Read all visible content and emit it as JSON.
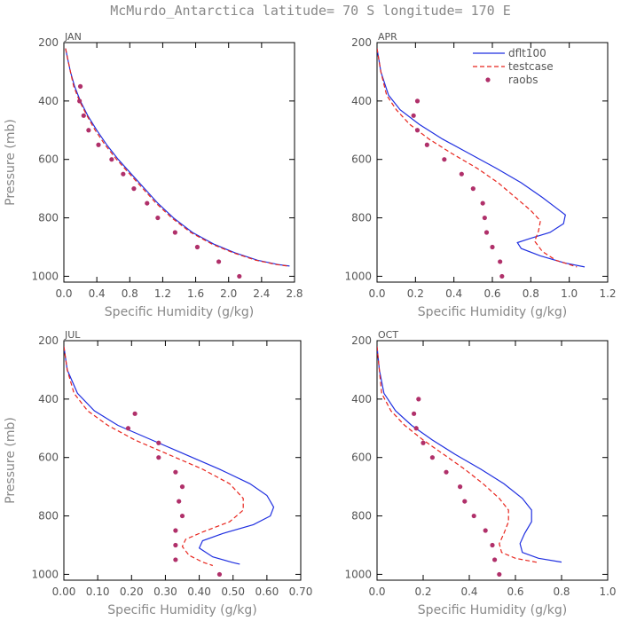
{
  "title": "McMurdo_Antarctica   latitude= 70 S longitude= 170 E",
  "colors": {
    "dflt100": "#1f2fe0",
    "testcase": "#e8241c",
    "raobs": "#b0306a",
    "axis": "#000000"
  },
  "chart_data": [
    {
      "type": "line",
      "title": "JAN",
      "xlabel": "Specific Humidity (g/kg)",
      "ylabel": "Pressure (mb)",
      "xlim": [
        0,
        2.8
      ],
      "ylim": [
        1020,
        200
      ],
      "xticks": [
        "0.0",
        "0.4",
        "0.8",
        "1.2",
        "1.6",
        "2.0",
        "2.4",
        "2.8"
      ],
      "yticks": [
        "200",
        "400",
        "600",
        "800",
        "1000"
      ],
      "legend": null,
      "series": [
        {
          "name": "dflt100",
          "style": "solid",
          "points": [
            [
              0.02,
              220
            ],
            [
              0.05,
              260
            ],
            [
              0.08,
              300
            ],
            [
              0.13,
              350
            ],
            [
              0.2,
              400
            ],
            [
              0.29,
              450
            ],
            [
              0.4,
              500
            ],
            [
              0.52,
              550
            ],
            [
              0.66,
              600
            ],
            [
              0.82,
              650
            ],
            [
              0.98,
              700
            ],
            [
              1.14,
              750
            ],
            [
              1.33,
              800
            ],
            [
              1.56,
              850
            ],
            [
              1.82,
              890
            ],
            [
              2.08,
              920
            ],
            [
              2.35,
              945
            ],
            [
              2.6,
              960
            ],
            [
              2.74,
              965
            ]
          ]
        },
        {
          "name": "testcase",
          "style": "dashed",
          "points": [
            [
              0.02,
              220
            ],
            [
              0.05,
              260
            ],
            [
              0.08,
              300
            ],
            [
              0.12,
              350
            ],
            [
              0.19,
              400
            ],
            [
              0.28,
              450
            ],
            [
              0.38,
              500
            ],
            [
              0.5,
              550
            ],
            [
              0.64,
              600
            ],
            [
              0.8,
              650
            ],
            [
              0.96,
              700
            ],
            [
              1.12,
              750
            ],
            [
              1.31,
              800
            ],
            [
              1.54,
              850
            ],
            [
              1.8,
              890
            ],
            [
              2.06,
              920
            ],
            [
              2.33,
              945
            ],
            [
              2.58,
              960
            ],
            [
              2.72,
              965
            ]
          ]
        },
        {
          "name": "raobs",
          "style": "markers",
          "points": [
            [
              0.2,
              350
            ],
            [
              0.19,
              400
            ],
            [
              0.24,
              450
            ],
            [
              0.3,
              500
            ],
            [
              0.42,
              550
            ],
            [
              0.58,
              600
            ],
            [
              0.72,
              650
            ],
            [
              0.85,
              700
            ],
            [
              1.01,
              750
            ],
            [
              1.14,
              800
            ],
            [
              1.35,
              850
            ],
            [
              1.62,
              900
            ],
            [
              1.88,
              950
            ],
            [
              2.13,
              1000
            ]
          ]
        }
      ]
    },
    {
      "type": "line",
      "title": "APR",
      "xlabel": "Specific Humidity (g/kg)",
      "ylabel": "",
      "xlim": [
        0,
        1.2
      ],
      "ylim": [
        1020,
        200
      ],
      "xticks": [
        "0.0",
        "0.2",
        "0.4",
        "0.6",
        "0.8",
        "1.0",
        "1.2"
      ],
      "yticks": [
        "200",
        "400",
        "600",
        "800",
        "1000"
      ],
      "legend": [
        "dflt100",
        "testcase",
        "raobs"
      ],
      "series": [
        {
          "name": "dflt100",
          "style": "solid",
          "points": [
            [
              0.0,
              220
            ],
            [
              0.02,
              300
            ],
            [
              0.06,
              380
            ],
            [
              0.12,
              430
            ],
            [
              0.22,
              480
            ],
            [
              0.34,
              530
            ],
            [
              0.48,
              580
            ],
            [
              0.62,
              630
            ],
            [
              0.75,
              680
            ],
            [
              0.86,
              730
            ],
            [
              0.94,
              770
            ],
            [
              0.98,
              790
            ],
            [
              0.97,
              820
            ],
            [
              0.9,
              850
            ],
            [
              0.8,
              870
            ],
            [
              0.73,
              885
            ],
            [
              0.75,
              905
            ],
            [
              0.85,
              930
            ],
            [
              0.98,
              955
            ],
            [
              1.08,
              968
            ]
          ]
        },
        {
          "name": "testcase",
          "style": "dashed",
          "points": [
            [
              0.0,
              220
            ],
            [
              0.02,
              300
            ],
            [
              0.05,
              380
            ],
            [
              0.1,
              430
            ],
            [
              0.17,
              480
            ],
            [
              0.27,
              530
            ],
            [
              0.39,
              580
            ],
            [
              0.52,
              630
            ],
            [
              0.63,
              680
            ],
            [
              0.72,
              730
            ],
            [
              0.8,
              775
            ],
            [
              0.85,
              810
            ],
            [
              0.84,
              845
            ],
            [
              0.82,
              880
            ],
            [
              0.86,
              915
            ],
            [
              0.93,
              945
            ],
            [
              1.04,
              968
            ]
          ]
        },
        {
          "name": "raobs",
          "style": "markers",
          "points": [
            [
              0.21,
              400
            ],
            [
              0.19,
              450
            ],
            [
              0.21,
              500
            ],
            [
              0.26,
              550
            ],
            [
              0.35,
              600
            ],
            [
              0.44,
              650
            ],
            [
              0.5,
              700
            ],
            [
              0.55,
              750
            ],
            [
              0.56,
              800
            ],
            [
              0.57,
              850
            ],
            [
              0.6,
              900
            ],
            [
              0.64,
              950
            ],
            [
              0.65,
              1000
            ]
          ]
        }
      ]
    },
    {
      "type": "line",
      "title": "JUL",
      "xlabel": "Specific Humidity (g/kg)",
      "ylabel": "Pressure (mb)",
      "xlim": [
        0,
        0.7
      ],
      "ylim": [
        1020,
        200
      ],
      "xticks": [
        "0.00",
        "0.10",
        "0.20",
        "0.30",
        "0.40",
        "0.50",
        "0.60",
        "0.70"
      ],
      "yticks": [
        "200",
        "400",
        "600",
        "800",
        "1000"
      ],
      "legend": null,
      "series": [
        {
          "name": "dflt100",
          "style": "solid",
          "points": [
            [
              0.0,
              220
            ],
            [
              0.01,
              300
            ],
            [
              0.04,
              380
            ],
            [
              0.09,
              440
            ],
            [
              0.16,
              490
            ],
            [
              0.26,
              540
            ],
            [
              0.36,
              590
            ],
            [
              0.46,
              640
            ],
            [
              0.55,
              690
            ],
            [
              0.6,
              730
            ],
            [
              0.62,
              770
            ],
            [
              0.61,
              800
            ],
            [
              0.56,
              830
            ],
            [
              0.47,
              860
            ],
            [
              0.41,
              885
            ],
            [
              0.4,
              910
            ],
            [
              0.44,
              940
            ],
            [
              0.5,
              960
            ],
            [
              0.52,
              965
            ]
          ]
        },
        {
          "name": "testcase",
          "style": "dashed",
          "points": [
            [
              0.0,
              220
            ],
            [
              0.01,
              300
            ],
            [
              0.03,
              380
            ],
            [
              0.07,
              440
            ],
            [
              0.13,
              490
            ],
            [
              0.21,
              540
            ],
            [
              0.31,
              590
            ],
            [
              0.41,
              640
            ],
            [
              0.49,
              690
            ],
            [
              0.53,
              740
            ],
            [
              0.53,
              780
            ],
            [
              0.49,
              820
            ],
            [
              0.41,
              855
            ],
            [
              0.36,
              880
            ],
            [
              0.35,
              905
            ],
            [
              0.37,
              935
            ],
            [
              0.41,
              958
            ],
            [
              0.44,
              970
            ]
          ]
        },
        {
          "name": "raobs",
          "style": "markers",
          "points": [
            [
              0.21,
              450
            ],
            [
              0.19,
              500
            ],
            [
              0.28,
              550
            ],
            [
              0.28,
              600
            ],
            [
              0.33,
              650
            ],
            [
              0.35,
              700
            ],
            [
              0.34,
              750
            ],
            [
              0.35,
              800
            ],
            [
              0.33,
              850
            ],
            [
              0.33,
              900
            ],
            [
              0.33,
              950
            ],
            [
              0.46,
              1000
            ]
          ]
        }
      ]
    },
    {
      "type": "line",
      "title": "OCT",
      "xlabel": "Specific Humidity (g/kg)",
      "ylabel": "",
      "xlim": [
        0,
        1.0
      ],
      "ylim": [
        1020,
        200
      ],
      "xticks": [
        "0.0",
        "0.2",
        "0.4",
        "0.6",
        "0.8",
        "1.0"
      ],
      "yticks": [
        "200",
        "400",
        "600",
        "800",
        "1000"
      ],
      "legend": null,
      "series": [
        {
          "name": "dflt100",
          "style": "solid",
          "points": [
            [
              0.0,
              220
            ],
            [
              0.01,
              300
            ],
            [
              0.03,
              380
            ],
            [
              0.08,
              440
            ],
            [
              0.15,
              490
            ],
            [
              0.24,
              540
            ],
            [
              0.34,
              590
            ],
            [
              0.45,
              640
            ],
            [
              0.55,
              690
            ],
            [
              0.63,
              740
            ],
            [
              0.67,
              780
            ],
            [
              0.67,
              820
            ],
            [
              0.64,
              860
            ],
            [
              0.62,
              895
            ],
            [
              0.63,
              925
            ],
            [
              0.7,
              945
            ],
            [
              0.8,
              958
            ]
          ]
        },
        {
          "name": "testcase",
          "style": "dashed",
          "points": [
            [
              0.0,
              220
            ],
            [
              0.01,
              300
            ],
            [
              0.02,
              380
            ],
            [
              0.06,
              440
            ],
            [
              0.12,
              490
            ],
            [
              0.2,
              540
            ],
            [
              0.29,
              590
            ],
            [
              0.38,
              640
            ],
            [
              0.46,
              690
            ],
            [
              0.53,
              740
            ],
            [
              0.57,
              780
            ],
            [
              0.57,
              820
            ],
            [
              0.55,
              860
            ],
            [
              0.53,
              895
            ],
            [
              0.54,
              925
            ],
            [
              0.6,
              945
            ],
            [
              0.7,
              960
            ]
          ]
        },
        {
          "name": "raobs",
          "style": "markers",
          "points": [
            [
              0.18,
              400
            ],
            [
              0.16,
              450
            ],
            [
              0.17,
              500
            ],
            [
              0.2,
              550
            ],
            [
              0.24,
              600
            ],
            [
              0.3,
              650
            ],
            [
              0.36,
              700
            ],
            [
              0.38,
              750
            ],
            [
              0.42,
              800
            ],
            [
              0.47,
              850
            ],
            [
              0.5,
              900
            ],
            [
              0.51,
              950
            ],
            [
              0.53,
              1000
            ]
          ]
        }
      ]
    }
  ]
}
